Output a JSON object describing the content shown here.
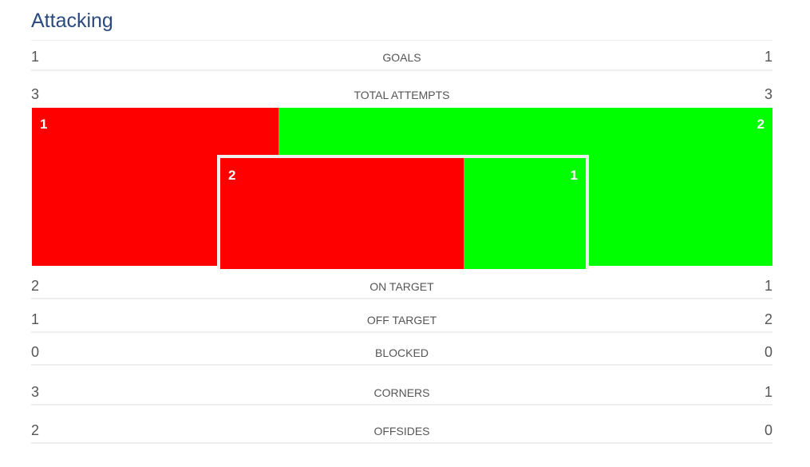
{
  "title": "Attacking",
  "colors": {
    "home": "#ff0000",
    "away": "#00ff00",
    "title": "#2a4a7f"
  },
  "goals": {
    "label": "GOALS",
    "home": "1",
    "away": "1"
  },
  "total_attempts": {
    "label": "TOTAL ATTEMPTS",
    "home": "3",
    "away": "3"
  },
  "attempts_graphic": {
    "off_target_home": "1",
    "off_target_away": "2",
    "on_target_home": "2",
    "on_target_away": "1"
  },
  "rows": [
    {
      "label": "ON TARGET",
      "home": "2",
      "away": "1"
    },
    {
      "label": "OFF TARGET",
      "home": "1",
      "away": "2"
    },
    {
      "label": "BLOCKED",
      "home": "0",
      "away": "0"
    },
    {
      "label": "CORNERS",
      "home": "3",
      "away": "1"
    },
    {
      "label": "OFFSIDES",
      "home": "2",
      "away": "0"
    }
  ]
}
